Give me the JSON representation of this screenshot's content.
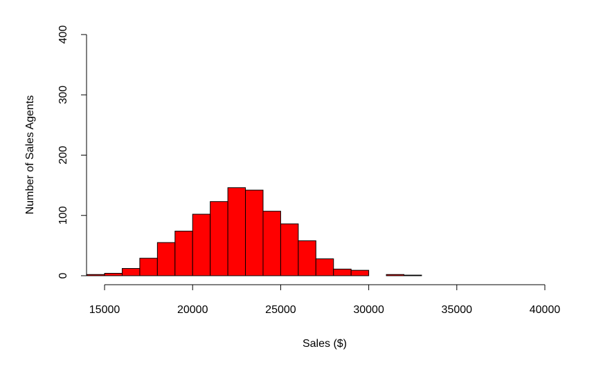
{
  "chart_data": {
    "type": "histogram",
    "x_label": "Sales ($)",
    "y_label": "Number of Sales Agents",
    "bins": [
      14000,
      15000,
      16000,
      17000,
      18000,
      19000,
      20000,
      21000,
      22000,
      23000,
      24000,
      25000,
      26000,
      27000,
      28000,
      29000,
      30000,
      31000,
      32000,
      33000
    ],
    "values": [
      2,
      4,
      12,
      29,
      55,
      74,
      102,
      123,
      146,
      142,
      107,
      86,
      58,
      28,
      11,
      9,
      0,
      2,
      1
    ],
    "color": "#ff0000",
    "xlim": [
      14000,
      40000
    ],
    "xticks": [
      15000,
      20000,
      25000,
      30000,
      35000,
      40000
    ],
    "ylim": [
      0,
      400
    ],
    "yticks": [
      0,
      100,
      200,
      300,
      400
    ],
    "grid": false
  }
}
